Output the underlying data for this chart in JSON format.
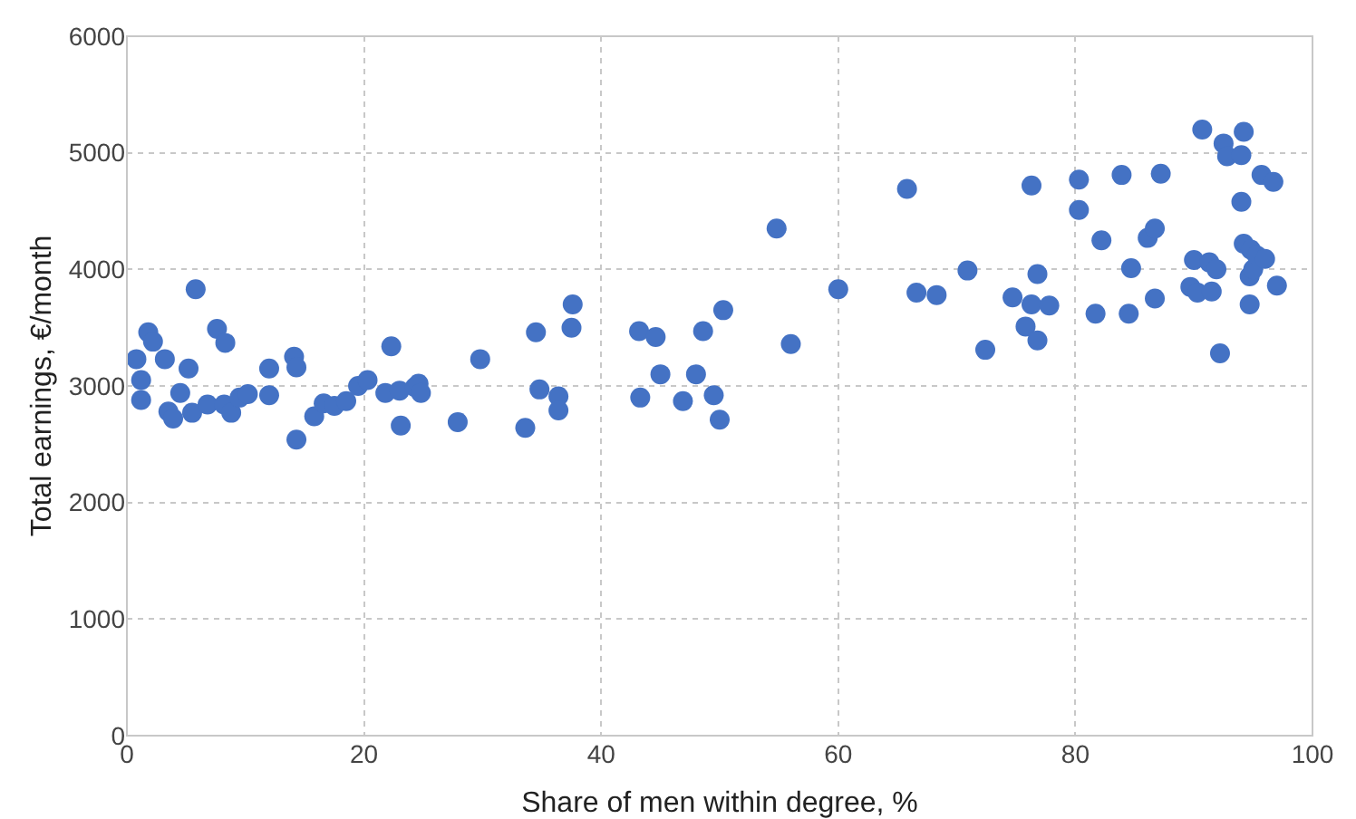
{
  "chart_data": {
    "type": "scatter",
    "xlabel": "Share of men within degree, %",
    "ylabel": "Total earnings, €/month",
    "x": [
      0.8,
      1.2,
      1.2,
      1.8,
      2.2,
      3.2,
      3.5,
      3.9,
      4.5,
      5.2,
      5.5,
      5.8,
      6.8,
      7.6,
      8.2,
      8.3,
      8.8,
      9.5,
      10.2,
      12,
      12,
      14.1,
      14.3,
      14.3,
      15.8,
      16.6,
      17.5,
      18.5,
      19.5,
      20.3,
      21.8,
      22.3,
      23,
      23.1,
      24.3,
      24.6,
      24.8,
      27.9,
      29.8,
      33.6,
      34.5,
      34.8,
      36.4,
      36.4,
      37.5,
      37.6,
      43.2,
      43.3,
      44.6,
      45,
      46.9,
      48,
      48.6,
      49.5,
      50,
      50.3,
      54.8,
      56,
      60,
      65.8,
      66.6,
      68.3,
      70.9,
      72.4,
      74.7,
      75.8,
      76.3,
      76.3,
      76.8,
      76.8,
      77.8,
      80.3,
      80.3,
      81.7,
      82.2,
      83.9,
      84.5,
      84.7,
      86.1,
      86.7,
      86.7,
      87.2,
      89.7,
      90,
      90.3,
      90.7,
      91.3,
      91.5,
      91.9,
      92.2,
      92.5,
      92.8,
      94,
      94,
      94.2,
      94.2,
      94.7,
      94.7,
      94.8,
      95,
      95.3,
      95.7,
      96,
      96.7,
      97
    ],
    "values": [
      3230,
      3050,
      2880,
      3460,
      3380,
      3230,
      2780,
      2720,
      2940,
      3150,
      2770,
      3830,
      2840,
      3490,
      2840,
      3370,
      2770,
      2900,
      2930,
      3150,
      2920,
      3250,
      3160,
      2540,
      2740,
      2850,
      2830,
      2870,
      3000,
      3050,
      2940,
      3340,
      2960,
      2660,
      2990,
      3020,
      2940,
      2690,
      3230,
      2640,
      3460,
      2970,
      2910,
      2790,
      3500,
      3700,
      3470,
      2900,
      3420,
      3100,
      2870,
      3100,
      3470,
      2920,
      2710,
      3650,
      4350,
      3360,
      3830,
      4690,
      3800,
      3780,
      3990,
      3310,
      3760,
      3510,
      3700,
      4720,
      3390,
      3960,
      3690,
      4770,
      4510,
      3620,
      4250,
      4810,
      3620,
      4010,
      4270,
      3750,
      4350,
      4820,
      3850,
      4080,
      3800,
      5200,
      4060,
      3810,
      4000,
      3280,
      5080,
      4970,
      4980,
      4580,
      5180,
      4220,
      3700,
      3940,
      4170,
      4000,
      4120,
      4810,
      4090,
      4750,
      3860
    ],
    "color": "#4472c4",
    "marker": "circle",
    "xlim": [
      0,
      100
    ],
    "xticks": [
      0,
      20,
      40,
      60,
      80,
      100
    ],
    "ylim": [
      0,
      6000
    ],
    "yticks": [
      0,
      1000,
      2000,
      3000,
      4000,
      5000,
      6000
    ],
    "grid": true
  }
}
